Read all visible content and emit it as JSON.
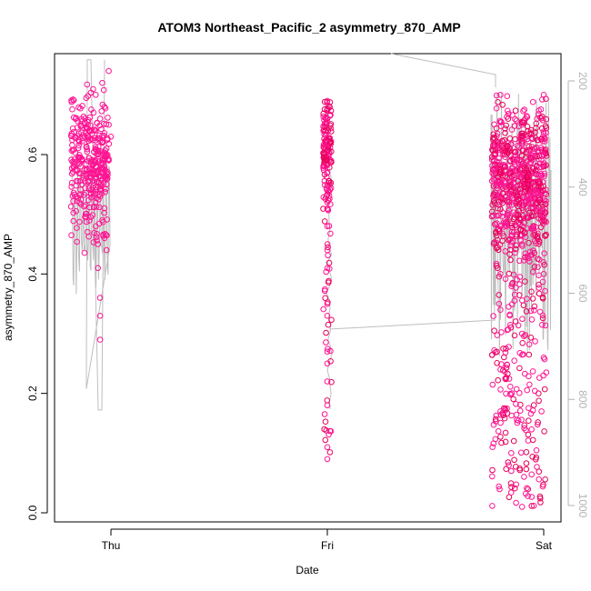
{
  "chart_data": {
    "type": "scatter",
    "title": "ATOM3 Northeast_Pacific_2 asymmetry_870_AMP",
    "xlabel": "Date",
    "ylabel": "asymmetry_870_AMP",
    "x_ticks": [
      "Thu",
      "Fri",
      "Sat"
    ],
    "y_ticks": [
      "0.0",
      "0.2",
      "0.4",
      "0.6"
    ],
    "y2_ticks": [
      "200",
      "400",
      "600",
      "800",
      "1000"
    ],
    "ylim": [
      0.0,
      0.76
    ],
    "y2lim": [
      1020,
      160
    ],
    "y2_reversed": true,
    "grid": false,
    "point_color": "#ff1493",
    "point_color_secondary": "#e8005a",
    "line_color": "#bebebe",
    "marker": "open circle",
    "series": [
      {
        "values": [
          {
            "x": "Thu -0.07",
            "y": 0.56
          },
          {
            "x": "Thu -0.07",
            "y": 0.64
          },
          {
            "x": "Thu -0.07",
            "y": 0.52
          },
          {
            "x": "Thu -0.07",
            "y": 0.48
          },
          {
            "x": "Thu -0.07",
            "y": 0.7
          },
          {
            "x": "Thu -0.06",
            "y": 0.6
          },
          {
            "x": "Thu -0.06",
            "y": 0.45
          },
          {
            "x": "Thu -0.06",
            "y": 0.57
          },
          {
            "x": "Thu -0.06",
            "y": 0.41
          },
          {
            "x": "Thu -0.05",
            "y": 0.66
          },
          {
            "x": "Thu -0.05",
            "y": 0.36
          },
          {
            "x": "Thu -0.05",
            "y": 0.53
          },
          {
            "x": "Thu -0.05",
            "y": 0.33
          },
          {
            "x": "Thu -0.05",
            "y": 0.29
          },
          {
            "x": "Thu -0.04",
            "y": 0.62
          },
          {
            "x": "Thu -0.04",
            "y": 0.49
          },
          {
            "x": "Thu -0.04",
            "y": 0.72
          },
          {
            "x": "Thu -0.03",
            "y": 0.58
          },
          {
            "x": "Thu -0.03",
            "y": 0.46
          },
          {
            "x": "Thu -0.03",
            "y": 0.68
          },
          {
            "x": "Thu -0.02",
            "y": 0.61
          },
          {
            "x": "Thu -0.02",
            "y": 0.55
          },
          {
            "x": "Thu -0.02",
            "y": 0.44
          },
          {
            "x": "Thu -0.01",
            "y": 0.65
          },
          {
            "x": "Thu -0.01",
            "y": 0.59
          },
          {
            "x": "Thu -0.01",
            "y": 0.74
          },
          {
            "x": "Thu 0.00",
            "y": 0.63
          },
          {
            "x": "Fri 0.00",
            "y": 0.69
          },
          {
            "x": "Fri 0.00",
            "y": 0.66
          },
          {
            "x": "Fri 0.00",
            "y": 0.62
          },
          {
            "x": "Fri 0.00",
            "y": 0.57
          },
          {
            "x": "Fri 0.00",
            "y": 0.52
          },
          {
            "x": "Fri 0.00",
            "y": 0.48
          },
          {
            "x": "Fri 0.00",
            "y": 0.44
          },
          {
            "x": "Fri 0.00",
            "y": 0.41
          },
          {
            "x": "Fri 0.00",
            "y": 0.35
          },
          {
            "x": "Fri 0.00",
            "y": 0.33
          },
          {
            "x": "Fri 0.00",
            "y": 0.27
          },
          {
            "x": "Fri 0.00",
            "y": 0.25
          },
          {
            "x": "Fri 0.00",
            "y": 0.22
          },
          {
            "x": "Fri 0.00",
            "y": 0.18
          },
          {
            "x": "Fri 0.00",
            "y": 0.11
          },
          {
            "x": "Fri 0.00",
            "y": 0.09
          },
          {
            "x": "Sat -0.2",
            "y": 0.7
          },
          {
            "x": "Sat -0.2",
            "y": 0.62
          },
          {
            "x": "Sat -0.2",
            "y": 0.55
          },
          {
            "x": "Sat -0.2",
            "y": 0.48
          },
          {
            "x": "Sat -0.2",
            "y": 0.4
          },
          {
            "x": "Sat -0.2",
            "y": 0.34
          },
          {
            "x": "Sat -0.2",
            "y": 0.24
          },
          {
            "x": "Sat -0.2",
            "y": 0.17
          },
          {
            "x": "Sat -0.15",
            "y": 0.1
          },
          {
            "x": "Sat -0.15",
            "y": 0.07
          },
          {
            "x": "Sat -0.1",
            "y": 0.65
          },
          {
            "x": "Sat -0.1",
            "y": 0.55
          },
          {
            "x": "Sat -0.1",
            "y": 0.45
          },
          {
            "x": "Sat -0.1",
            "y": 0.3
          },
          {
            "x": "Sat -0.1",
            "y": 0.01
          },
          {
            "x": "Sat 0.00",
            "y": 0.7
          },
          {
            "x": "Sat 0.00",
            "y": 0.6
          },
          {
            "x": "Sat 0.00",
            "y": 0.5
          },
          {
            "x": "Sat 0.00",
            "y": 0.4
          },
          {
            "x": "Sat 0.00",
            "y": 0.26
          }
        ]
      }
    ]
  }
}
